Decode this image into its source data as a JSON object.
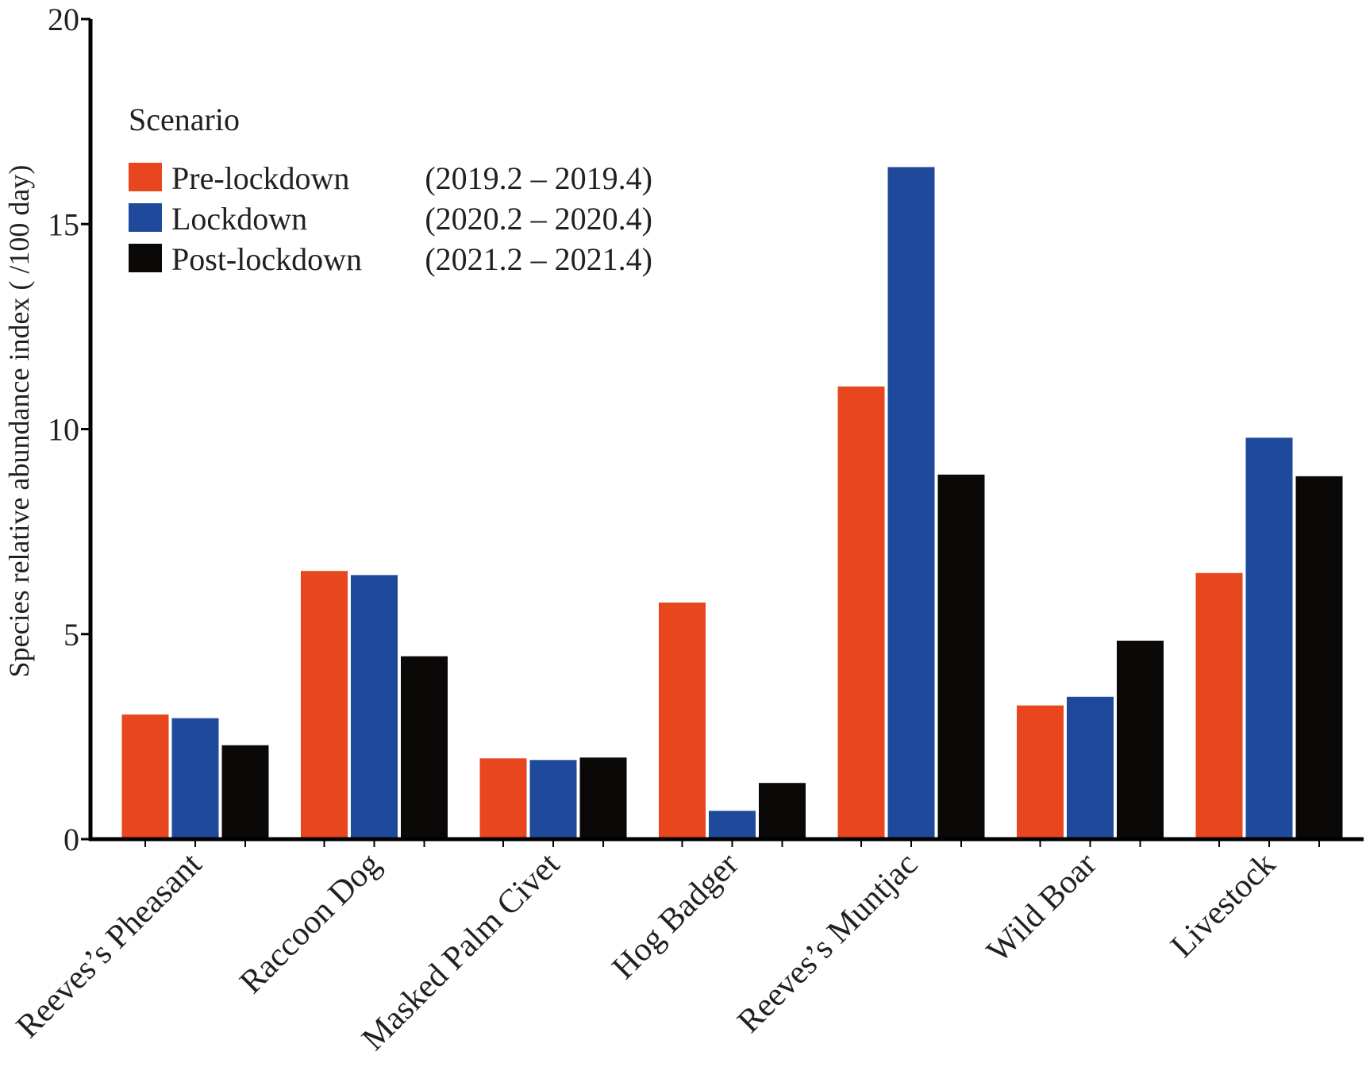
{
  "chart_data": {
    "type": "bar",
    "title": "",
    "xlabel": "",
    "ylabel": "Species relative abundance index ( /100 day)",
    "ylim": [
      0,
      20
    ],
    "yticks": [
      "0",
      "5",
      "10",
      "15",
      "20"
    ],
    "grid": false,
    "legend": {
      "title": "Scenario",
      "placement": "top-left"
    },
    "categories": [
      "Reeves’s Pheasant",
      "Raccoon Dog",
      "Masked Palm Civet",
      "Hog Badger",
      "Reeves’s Muntjac",
      "Wild Boar",
      "Livestock"
    ],
    "series": [
      {
        "name": "Pre-lockdown",
        "range": "(2019.2 – 2019.4)",
        "color": "#e8461e",
        "values": [
          3.05,
          6.55,
          1.98,
          5.78,
          11.05,
          3.27,
          6.5
        ]
      },
      {
        "name": "Lockdown",
        "range": "(2020.2 – 2020.4)",
        "color": "#1f4a9c",
        "values": [
          2.96,
          6.45,
          1.94,
          0.7,
          16.4,
          3.48,
          9.8
        ]
      },
      {
        "name": "Post-lockdown",
        "range": "(2021.2 – 2021.4)",
        "color": "#0b0808",
        "values": [
          2.3,
          4.47,
          2.0,
          1.38,
          8.9,
          4.85,
          8.86
        ]
      }
    ]
  }
}
